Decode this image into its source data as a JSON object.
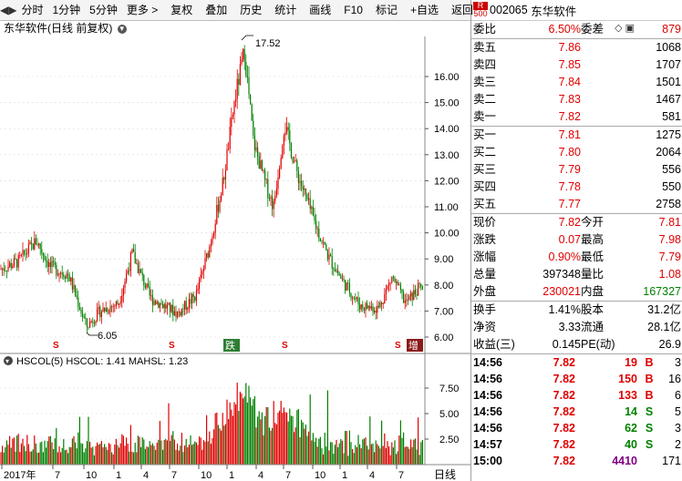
{
  "toolbar": {
    "items": [
      "分时",
      "1分钟",
      "5分钟",
      "更多 >",
      "复权",
      "叠加",
      "历史",
      "统计",
      "画线",
      "F10",
      "标记",
      "+自选",
      "返回"
    ]
  },
  "title": "东华软件(日线 前复权)",
  "price_axis": [
    "16.00",
    "15.00",
    "14.00",
    "13.00",
    "12.00",
    "11.00",
    "10.00",
    "9.00",
    "8.00",
    "7.00",
    "6.00"
  ],
  "annotations": {
    "high": "17.52",
    "low": "6.05"
  },
  "vol_title": "HSCOL(5)  HSCOL: 1.41  MAHSL: 1.23",
  "vol_axis": [
    "7.50",
    "5.00",
    "2.50"
  ],
  "x_axis": [
    "2017年",
    "7",
    "10",
    "1",
    "4",
    "7",
    "10",
    "1",
    "4",
    "7",
    "10",
    "1",
    "4",
    "7"
  ],
  "x_axis_right": "日线",
  "markers": {
    "s": "S",
    "di": "跌",
    "zeng": "增"
  },
  "quote": {
    "code": "002065",
    "name": "东华软件",
    "badge_top": "R",
    "badge_bottom": "500",
    "weibi_label": "委比",
    "weibi": "6.50%",
    "weicha_label": "委差",
    "weicha": "879",
    "asks": [
      {
        "label": "卖五",
        "price": "7.86",
        "vol": "1068"
      },
      {
        "label": "卖四",
        "price": "7.85",
        "vol": "1707"
      },
      {
        "label": "卖三",
        "price": "7.84",
        "vol": "1501"
      },
      {
        "label": "卖二",
        "price": "7.83",
        "vol": "1467"
      },
      {
        "label": "卖一",
        "price": "7.82",
        "vol": "581"
      }
    ],
    "bids": [
      {
        "label": "买一",
        "price": "7.81",
        "vol": "1275"
      },
      {
        "label": "买二",
        "price": "7.80",
        "vol": "2064"
      },
      {
        "label": "买三",
        "price": "7.79",
        "vol": "556"
      },
      {
        "label": "买四",
        "price": "7.78",
        "vol": "550"
      },
      {
        "label": "买五",
        "price": "7.77",
        "vol": "2758"
      }
    ],
    "stats": [
      {
        "l1": "现价",
        "v1": "7.82",
        "c1": "red",
        "l2": "今开",
        "v2": "7.81",
        "c2": "red"
      },
      {
        "l1": "涨跌",
        "v1": "0.07",
        "c1": "red",
        "l2": "最高",
        "v2": "7.98",
        "c2": "red"
      },
      {
        "l1": "涨幅",
        "v1": "0.90%",
        "c1": "red",
        "l2": "最低",
        "v2": "7.79",
        "c2": "red"
      },
      {
        "l1": "总量",
        "v1": "397348",
        "c1": "",
        "l2": "量比",
        "v2": "1.08",
        "c2": "red"
      },
      {
        "l1": "外盘",
        "v1": "230021",
        "c1": "red",
        "l2": "内盘",
        "v2": "167327",
        "c2": "green"
      }
    ],
    "fund": [
      {
        "l1": "换手",
        "v1": "1.41%",
        "l2": "股本",
        "v2": "31.2亿"
      },
      {
        "l1": "净资",
        "v1": "3.33",
        "l2": "流通",
        "v2": "28.1亿"
      },
      {
        "l1": "收益(三)",
        "v1": "0.145",
        "l2": "PE(动)",
        "v2": "26.9"
      }
    ],
    "ticks": [
      {
        "time": "14:56",
        "price": "7.82",
        "vol": "19",
        "side": "B",
        "n": "3"
      },
      {
        "time": "14:56",
        "price": "7.82",
        "vol": "150",
        "side": "B",
        "n": "16"
      },
      {
        "time": "14:56",
        "price": "7.82",
        "vol": "133",
        "side": "B",
        "n": "6"
      },
      {
        "time": "14:56",
        "price": "7.82",
        "vol": "14",
        "side": "S",
        "n": "5"
      },
      {
        "time": "14:56",
        "price": "7.82",
        "vol": "62",
        "side": "S",
        "n": "3"
      },
      {
        "time": "14:57",
        "price": "7.82",
        "vol": "40",
        "side": "S",
        "n": "2"
      },
      {
        "time": "15:00",
        "price": "7.82",
        "vol": "4410",
        "side": "",
        "n": "171"
      }
    ]
  },
  "colors": {
    "up": "#e00000",
    "down": "#008000",
    "grid": "#d8d8d8",
    "axis": "#555555"
  }
}
